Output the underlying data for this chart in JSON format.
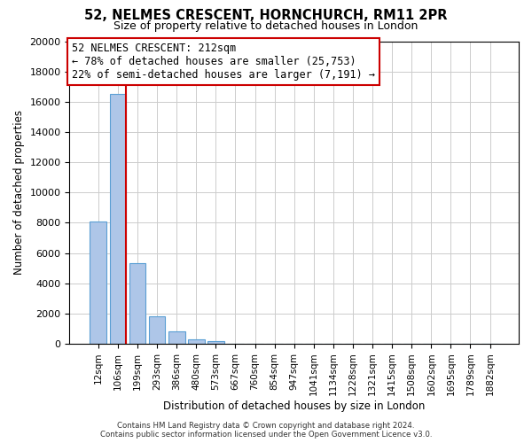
{
  "title": "52, NELMES CRESCENT, HORNCHURCH, RM11 2PR",
  "subtitle": "Size of property relative to detached houses in London",
  "xlabel": "Distribution of detached houses by size in London",
  "ylabel": "Number of detached properties",
  "bar_labels": [
    "12sqm",
    "106sqm",
    "199sqm",
    "293sqm",
    "386sqm",
    "480sqm",
    "573sqm",
    "667sqm",
    "760sqm",
    "854sqm",
    "947sqm",
    "1041sqm",
    "1134sqm",
    "1228sqm",
    "1321sqm",
    "1415sqm",
    "1508sqm",
    "1602sqm",
    "1695sqm",
    "1789sqm",
    "1882sqm"
  ],
  "bar_heights": [
    8100,
    16500,
    5300,
    1800,
    800,
    300,
    200,
    0,
    0,
    0,
    0,
    0,
    0,
    0,
    0,
    0,
    0,
    0,
    0,
    0,
    0
  ],
  "bar_color": "#aec6e8",
  "bar_edgecolor": "#5a9fd4",
  "ylim": [
    0,
    20000
  ],
  "yticks": [
    0,
    2000,
    4000,
    6000,
    8000,
    10000,
    12000,
    14000,
    16000,
    18000,
    20000
  ],
  "property_line_bar_index": 1,
  "property_line_color": "#cc0000",
  "annotation_title": "52 NELMES CRESCENT: 212sqm",
  "annotation_line1": "← 78% of detached houses are smaller (25,753)",
  "annotation_line2": "22% of semi-detached houses are larger (7,191) →",
  "annotation_box_color": "#ffffff",
  "annotation_box_edgecolor": "#cc0000",
  "footer1": "Contains HM Land Registry data © Crown copyright and database right 2024.",
  "footer2": "Contains public sector information licensed under the Open Government Licence v3.0.",
  "background_color": "#ffffff",
  "grid_color": "#cccccc"
}
